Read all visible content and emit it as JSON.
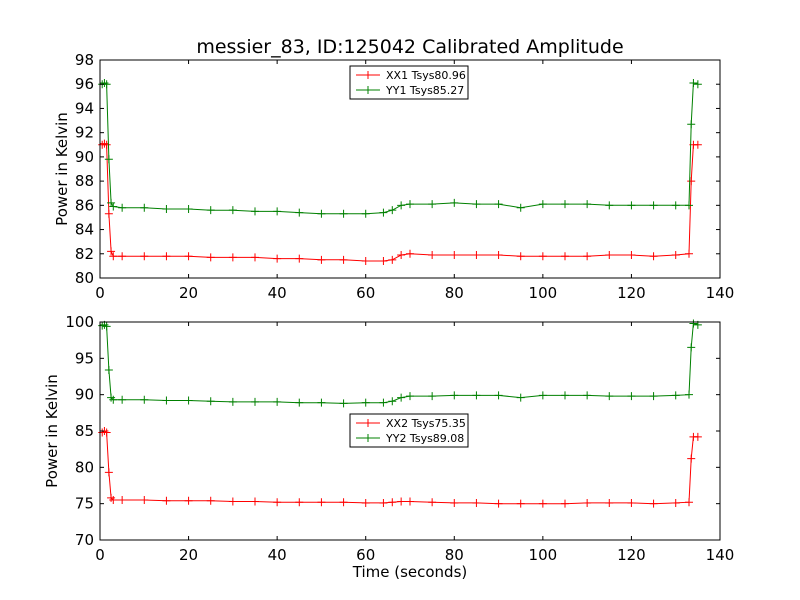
{
  "chart_data": [
    {
      "type": "line",
      "title": "messier_83, ID:125042 Calibrated Amplitude",
      "xlabel": "",
      "ylabel": "Power in Kelvin",
      "xlim": [
        0,
        140
      ],
      "ylim": [
        80,
        98
      ],
      "xticks": [
        "0",
        "20",
        "40",
        "60",
        "80",
        "100",
        "120",
        "140"
      ],
      "yticks": [
        "80",
        "82",
        "84",
        "86",
        "88",
        "90",
        "92",
        "94",
        "96",
        "98"
      ],
      "grid": false,
      "legend_position": "top-center",
      "marker": "+",
      "series": [
        {
          "name": "XX1 Tsys80.96",
          "color": "#ff0000",
          "x": [
            0.5,
            1,
            1.5,
            2,
            2.5,
            3,
            5,
            10,
            15,
            20,
            25,
            30,
            35,
            40,
            45,
            50,
            55,
            60,
            64,
            66,
            68,
            70,
            75,
            80,
            85,
            90,
            95,
            100,
            105,
            110,
            115,
            120,
            125,
            130,
            133,
            133.5,
            134,
            135
          ],
          "values": [
            91,
            91.1,
            91,
            85.3,
            82.2,
            81.8,
            81.8,
            81.8,
            81.8,
            81.8,
            81.7,
            81.7,
            81.7,
            81.6,
            81.6,
            81.5,
            81.5,
            81.4,
            81.4,
            81.5,
            81.9,
            82.0,
            81.9,
            81.9,
            81.9,
            81.9,
            81.8,
            81.8,
            81.8,
            81.8,
            81.9,
            81.9,
            81.8,
            81.9,
            82.0,
            88,
            91,
            91
          ]
        },
        {
          "name": "YY1 Tsys85.27",
          "color": "#008000",
          "x": [
            0.5,
            1,
            1.5,
            2,
            2.5,
            3,
            5,
            10,
            15,
            20,
            25,
            30,
            35,
            40,
            45,
            50,
            55,
            60,
            64,
            66,
            68,
            70,
            75,
            80,
            85,
            90,
            95,
            100,
            105,
            110,
            115,
            120,
            125,
            130,
            133,
            133.5,
            134,
            135
          ],
          "values": [
            96,
            96.1,
            96,
            89.8,
            86.2,
            85.9,
            85.8,
            85.8,
            85.7,
            85.7,
            85.6,
            85.6,
            85.5,
            85.5,
            85.4,
            85.3,
            85.3,
            85.3,
            85.4,
            85.6,
            86.0,
            86.1,
            86.1,
            86.2,
            86.1,
            86.1,
            85.8,
            86.1,
            86.1,
            86.1,
            86.0,
            86.0,
            86.0,
            86.0,
            86.0,
            92.7,
            96.1,
            96
          ]
        }
      ]
    },
    {
      "type": "line",
      "title": "",
      "xlabel": "Time (seconds)",
      "ylabel": "Power in Kelvin",
      "xlim": [
        0,
        140
      ],
      "ylim": [
        70,
        100
      ],
      "xticks": [
        "0",
        "20",
        "40",
        "60",
        "80",
        "100",
        "120",
        "140"
      ],
      "yticks": [
        "70",
        "75",
        "80",
        "85",
        "90",
        "95",
        "100"
      ],
      "grid": false,
      "legend_position": "center",
      "marker": "+",
      "series": [
        {
          "name": "XX2 Tsys75.35",
          "color": "#ff0000",
          "x": [
            0.5,
            1,
            1.5,
            2,
            2.5,
            3,
            5,
            10,
            15,
            20,
            25,
            30,
            35,
            40,
            45,
            50,
            55,
            60,
            64,
            66,
            68,
            70,
            75,
            80,
            85,
            90,
            95,
            100,
            105,
            110,
            115,
            120,
            125,
            130,
            133,
            133.5,
            134,
            135
          ],
          "values": [
            84.8,
            85,
            84.8,
            79.3,
            75.8,
            75.5,
            75.5,
            75.5,
            75.4,
            75.4,
            75.4,
            75.3,
            75.3,
            75.2,
            75.2,
            75.2,
            75.2,
            75.1,
            75.1,
            75.2,
            75.3,
            75.3,
            75.2,
            75.1,
            75.1,
            75.0,
            75.0,
            75.0,
            75.0,
            75.1,
            75.1,
            75.1,
            75.0,
            75.1,
            75.2,
            81.2,
            84.2,
            84.2
          ]
        },
        {
          "name": "YY2 Tsys89.08",
          "color": "#008000",
          "x": [
            0.5,
            1,
            1.5,
            2,
            2.5,
            3,
            5,
            10,
            15,
            20,
            25,
            30,
            35,
            40,
            45,
            50,
            55,
            60,
            64,
            66,
            68,
            70,
            75,
            80,
            85,
            90,
            95,
            100,
            105,
            110,
            115,
            120,
            125,
            130,
            133,
            133.5,
            134,
            135
          ],
          "values": [
            99.5,
            99.6,
            99.4,
            93.4,
            89.6,
            89.3,
            89.3,
            89.3,
            89.2,
            89.2,
            89.1,
            89.0,
            89.0,
            89.0,
            88.9,
            88.9,
            88.8,
            88.9,
            88.9,
            89.1,
            89.6,
            89.8,
            89.8,
            89.9,
            89.9,
            89.9,
            89.6,
            89.9,
            89.9,
            89.9,
            89.8,
            89.8,
            89.8,
            89.9,
            90.0,
            96.5,
            99.8,
            99.6
          ]
        }
      ]
    }
  ]
}
